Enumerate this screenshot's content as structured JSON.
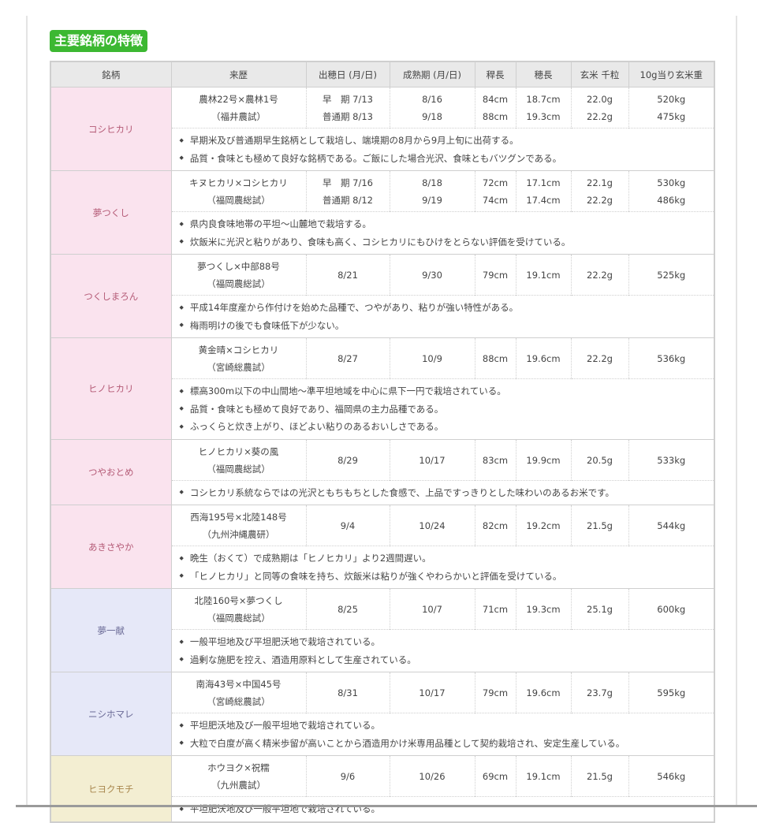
{
  "title": "主要銘柄の特徴",
  "colors": {
    "title_bg": "#3cb832",
    "pink": "#fae3ee",
    "lavender": "#e6e8f8",
    "yellow": "#f3eed2"
  },
  "headers": [
    "銘柄",
    "来歴",
    "出穂日 (月/日)",
    "成熟期 (月/日)",
    "稈長",
    "穂長",
    "玄米 千粒",
    "10g当り玄米重"
  ],
  "varieties": [
    {
      "name": "コシヒカリ",
      "color": "pink",
      "origin": [
        "農林22号×農林1号",
        "（福井農試）"
      ],
      "heading": [
        "早　期 7/13",
        "普通期 8/13"
      ],
      "maturity": [
        "8/16",
        "9/18"
      ],
      "culm": [
        "84cm",
        "88cm"
      ],
      "panicle": [
        "18.7cm",
        "19.3cm"
      ],
      "grain": [
        "22.0g",
        "22.2g"
      ],
      "yield": [
        "520kg",
        "475kg"
      ],
      "notes": [
        "早期米及び普通期早生銘柄として栽培し、端境期の8月から9月上旬に出荷する。",
        "品質・食味とも極めて良好な銘柄である。ご飯にした場合光沢、食味ともバツグンである。"
      ]
    },
    {
      "name": "夢つくし",
      "color": "pink",
      "origin": [
        "キヌヒカリ×コシヒカリ",
        "（福岡農総試）"
      ],
      "heading": [
        "早　期 7/16",
        "普通期 8/12"
      ],
      "maturity": [
        "8/18",
        "9/19"
      ],
      "culm": [
        "72cm",
        "74cm"
      ],
      "panicle": [
        "17.1cm",
        "17.4cm"
      ],
      "grain": [
        "22.1g",
        "22.2g"
      ],
      "yield": [
        "530kg",
        "486kg"
      ],
      "notes": [
        "県内良食味地帯の平坦～山麓地で栽培する。",
        "炊飯米に光沢と粘りがあり、食味も高く、コシヒカリにもひけをとらない評価を受けている。"
      ]
    },
    {
      "name": "つくしまろん",
      "color": "pink",
      "origin": [
        "夢つくし×中部88号",
        "（福岡農総試）"
      ],
      "heading": [
        "8/21"
      ],
      "maturity": [
        "9/30"
      ],
      "culm": [
        "79cm"
      ],
      "panicle": [
        "19.1cm"
      ],
      "grain": [
        "22.2g"
      ],
      "yield": [
        "525kg"
      ],
      "notes": [
        "平成14年度産から作付けを始めた品種で、つやがあり、粘りが強い特性がある。",
        "梅雨明けの後でも食味低下が少ない。"
      ]
    },
    {
      "name": "ヒノヒカリ",
      "color": "pink",
      "origin": [
        "黄金晴×コシヒカリ",
        "（宮崎総農試）"
      ],
      "heading": [
        "8/27"
      ],
      "maturity": [
        "10/9"
      ],
      "culm": [
        "88cm"
      ],
      "panicle": [
        "19.6cm"
      ],
      "grain": [
        "22.2g"
      ],
      "yield": [
        "536kg"
      ],
      "notes": [
        "標高300m以下の中山間地～準平坦地域を中心に県下一円で栽培されている。",
        "品質・食味とも極めて良好であり、福岡県の主力品種である。",
        "ふっくらと炊き上がり、ほどよい粘りのあるおいしさである。"
      ]
    },
    {
      "name": "つやおとめ",
      "color": "pink",
      "origin": [
        "ヒノヒカリ×葵の風",
        "（福岡農総試）"
      ],
      "heading": [
        "8/29"
      ],
      "maturity": [
        "10/17"
      ],
      "culm": [
        "83cm"
      ],
      "panicle": [
        "19.9cm"
      ],
      "grain": [
        "20.5g"
      ],
      "yield": [
        "533kg"
      ],
      "notes": [
        "コシヒカリ系統ならではの光沢ともちもちとした食感で、上品ですっきりとした味わいのあるお米です。"
      ]
    },
    {
      "name": "あきさやか",
      "color": "pink",
      "origin": [
        "西海195号×北陸148号",
        "（九州沖縄農研）"
      ],
      "heading": [
        "9/4"
      ],
      "maturity": [
        "10/24"
      ],
      "culm": [
        "82cm"
      ],
      "panicle": [
        "19.2cm"
      ],
      "grain": [
        "21.5g"
      ],
      "yield": [
        "544kg"
      ],
      "notes": [
        "晩生（おくて）で成熟期は「ヒノヒカリ」より2週間遅い。",
        "「ヒノヒカリ」と同等の食味を持ち、炊飯米は粘りが強くやわらかいと評価を受けている。"
      ]
    },
    {
      "name": "夢一献",
      "color": "lav",
      "origin": [
        "北陸160号×夢つくし",
        "（福岡農総試）"
      ],
      "heading": [
        "8/25"
      ],
      "maturity": [
        "10/7"
      ],
      "culm": [
        "71cm"
      ],
      "panicle": [
        "19.3cm"
      ],
      "grain": [
        "25.1g"
      ],
      "yield": [
        "600kg"
      ],
      "notes": [
        "一般平坦地及び平坦肥沃地で栽培されている。",
        "過剰な施肥を控え、酒造用原料として生産されている。"
      ]
    },
    {
      "name": "ニシホマレ",
      "color": "lav",
      "origin": [
        "南海43号×中国45号",
        "（宮崎総農試）"
      ],
      "heading": [
        "8/31"
      ],
      "maturity": [
        "10/17"
      ],
      "culm": [
        "79cm"
      ],
      "panicle": [
        "19.6cm"
      ],
      "grain": [
        "23.7g"
      ],
      "yield": [
        "595kg"
      ],
      "notes": [
        "平坦肥沃地及び一般平坦地で栽培されている。",
        "大粒で白度が高く精米歩留が高いことから酒造用かけ米専用品種として契約栽培され、安定生産している。"
      ]
    },
    {
      "name": "ヒヨクモチ",
      "color": "yel",
      "origin": [
        "ホウヨク×祝糯",
        "（九州農試）"
      ],
      "heading": [
        "9/6"
      ],
      "maturity": [
        "10/26"
      ],
      "culm": [
        "69cm"
      ],
      "panicle": [
        "19.1cm"
      ],
      "grain": [
        "21.5g"
      ],
      "yield": [
        "546kg"
      ],
      "notes": [
        "平坦肥沃地及び一般平坦地で栽培されている。"
      ]
    }
  ]
}
